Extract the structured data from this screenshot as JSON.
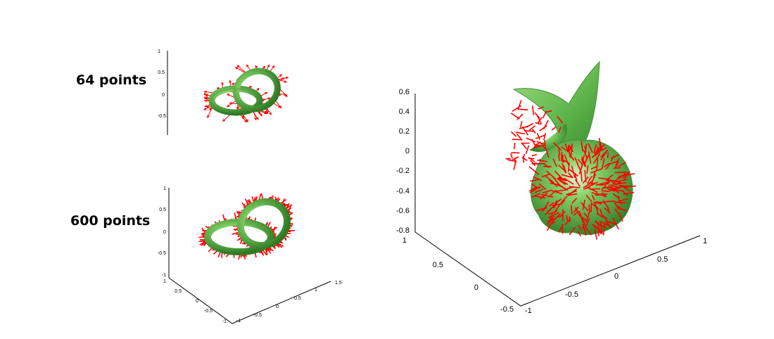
{
  "labels": {
    "top": "64 points",
    "bottom": "600 points"
  },
  "colors": {
    "surface": "#5fb54a",
    "surface_dark": "#2f7a25",
    "surface_light": "#b8e6a6",
    "normals": "#ff0000"
  },
  "panel_top": {
    "z_ticks": [
      "1",
      "0.5",
      "0",
      "-0.5"
    ],
    "normal_count": 64
  },
  "panel_bottom": {
    "z_ticks": [
      "1",
      "0.5",
      "0",
      "-0.5",
      "-1"
    ],
    "x_ticks": [
      "-1",
      "-0.5",
      "0",
      "0.5",
      "1",
      "1.5"
    ],
    "y_ticks": [
      "1",
      "0.5",
      "0",
      "-0.5",
      "-1"
    ],
    "normal_count": 600
  },
  "panel_right": {
    "z_ticks": [
      "0.6",
      "0.4",
      "0.2",
      "0",
      "-0.2",
      "-0.4",
      "-0.6",
      "-0.8"
    ],
    "x_ticks": [
      "-1",
      "-0.5",
      "0",
      "0.5",
      "1"
    ],
    "y_ticks": [
      "1",
      "0.5",
      "0",
      "-0.5"
    ]
  }
}
